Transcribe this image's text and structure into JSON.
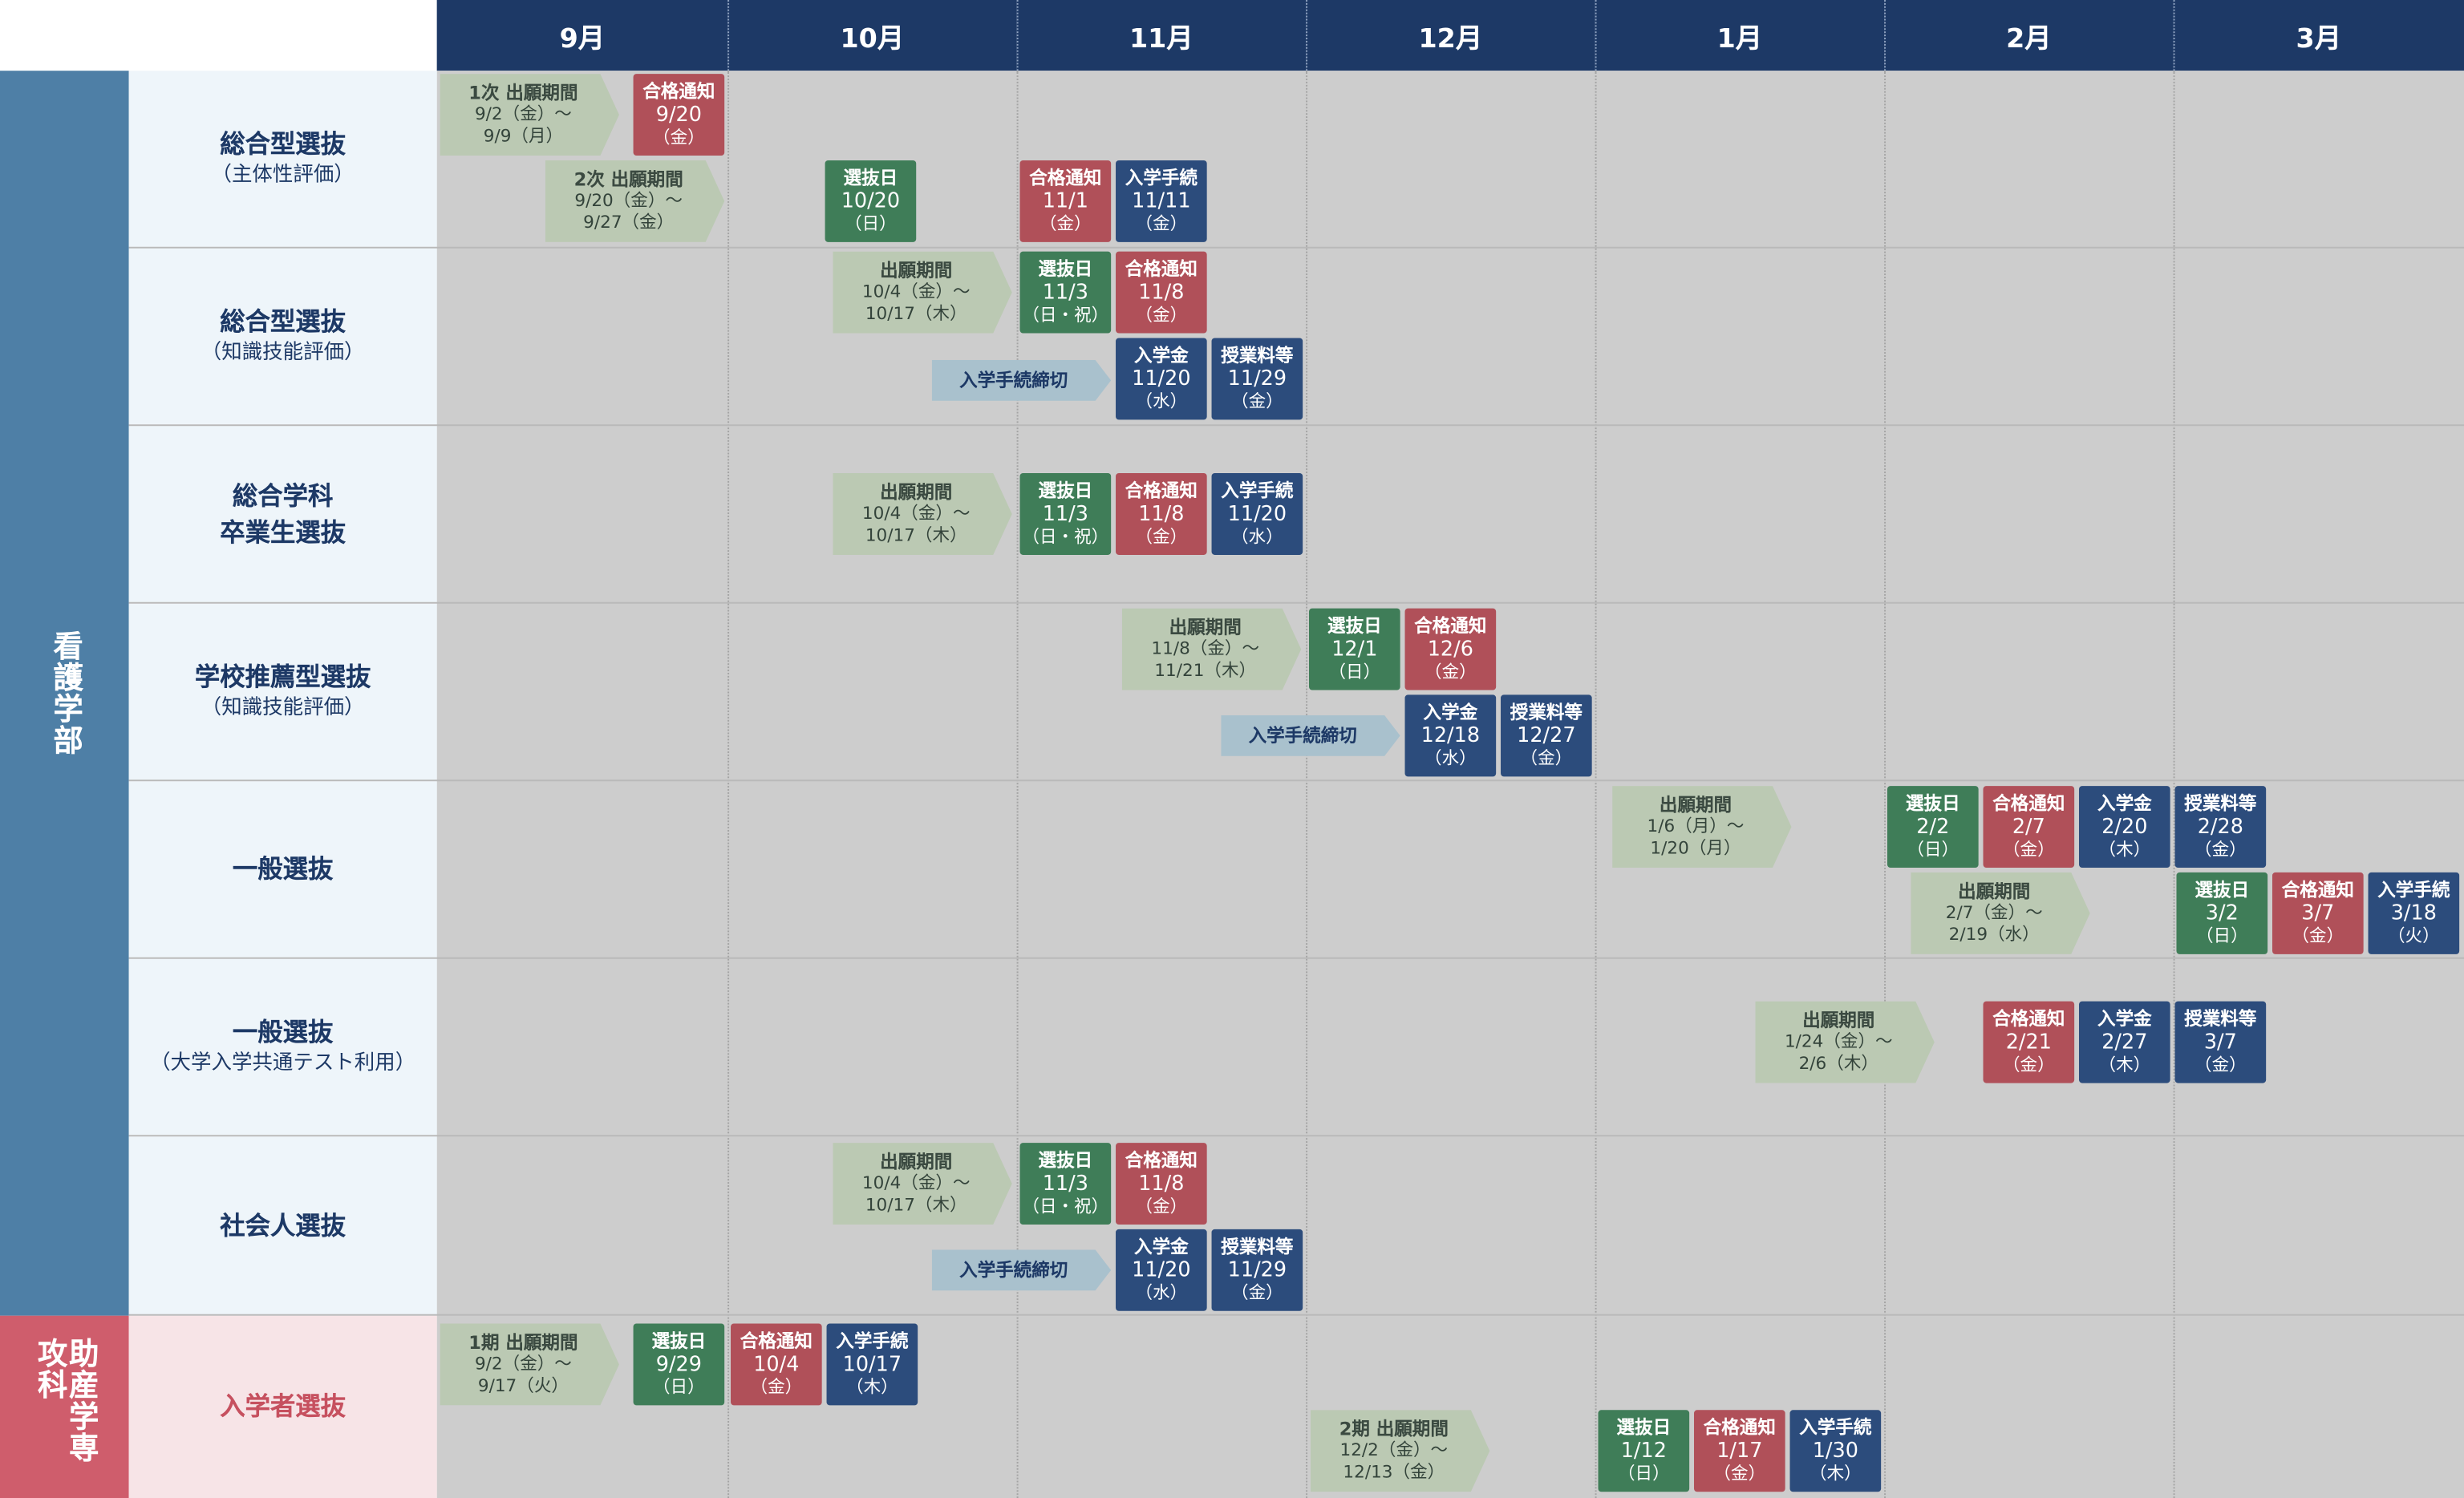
{
  "colors": {
    "header": "#1d3966",
    "nursing": "#4e7fa6",
    "midwifery": "#cf5d6c",
    "green": "#3f7d58",
    "red": "#b05059",
    "navy": "#2c4c7c",
    "arrow": "#bbc9b3",
    "deadline": "#a9c1cd"
  },
  "months": [
    "9月",
    "10月",
    "11月",
    "12月",
    "1月",
    "2月",
    "3月"
  ],
  "departments": [
    {
      "name": "看護学部"
    },
    {
      "name": "助産学専攻科"
    }
  ],
  "rows": [
    {
      "name": "総合型選抜",
      "sub": "（主体性評価）"
    },
    {
      "name": "総合型選抜",
      "sub": "（知識技能評価）"
    },
    {
      "name": "総合学科",
      "sub": "卒業生選抜"
    },
    {
      "name": "学校推薦型選抜",
      "sub": "（知識技能評価）"
    },
    {
      "name": "一般選抜",
      "sub": ""
    },
    {
      "name": "一般選抜",
      "sub": "（大学入学共通テスト利用）"
    },
    {
      "name": "社会人選抜",
      "sub": ""
    },
    {
      "name": "入学者選抜",
      "sub": ""
    }
  ],
  "arrows": [
    {
      "title": "1次 出願期間",
      "line1": "9/2（金）〜",
      "line2": "9/9（月）"
    },
    {
      "title": "2次 出願期間",
      "line1": "9/20（金）〜",
      "line2": "9/27（金）"
    },
    {
      "title": "出願期間",
      "line1": "10/4（金）〜",
      "line2": "10/17（木）"
    },
    {
      "title": "出願期間",
      "line1": "10/4（金）〜",
      "line2": "10/17（木）"
    },
    {
      "title": "出願期間",
      "line1": "11/8（金）〜",
      "line2": "11/21（木）"
    },
    {
      "title": "出願期間",
      "line1": "1/6（月）〜",
      "line2": "1/20（月）"
    },
    {
      "title": "出願期間",
      "line1": "2/7（金）〜",
      "line2": "2/19（水）"
    },
    {
      "title": "出願期間",
      "line1": "1/24（金）〜",
      "line2": "2/6（木）"
    },
    {
      "title": "出願期間",
      "line1": "10/4（金）〜",
      "line2": "10/17（木）"
    },
    {
      "title": "1期 出願期間",
      "line1": "9/2（金）〜",
      "line2": "9/17（火）"
    },
    {
      "title": "2期 出願期間",
      "line1": "12/2（金）〜",
      "line2": "12/13（金）"
    }
  ],
  "deadlines": [
    "入学手続締切",
    "入学手続締切",
    "入学手続締切"
  ],
  "cards": [
    {
      "title": "合格通知",
      "date": "9/20",
      "weekday": "（金）"
    },
    {
      "title": "選抜日",
      "date": "10/20",
      "weekday": "（日）"
    },
    {
      "title": "合格通知",
      "date": "11/1",
      "weekday": "（金）"
    },
    {
      "title": "入学手続",
      "date": "11/11",
      "weekday": "（金）"
    },
    {
      "title": "選抜日",
      "date": "11/3",
      "weekday": "（日・祝）"
    },
    {
      "title": "合格通知",
      "date": "11/8",
      "weekday": "（金）"
    },
    {
      "title": "入学金",
      "date": "11/20",
      "weekday": "（水）"
    },
    {
      "title": "授業料等",
      "date": "11/29",
      "weekday": "（金）"
    },
    {
      "title": "選抜日",
      "date": "11/3",
      "weekday": "（日・祝）"
    },
    {
      "title": "合格通知",
      "date": "11/8",
      "weekday": "（金）"
    },
    {
      "title": "入学手続",
      "date": "11/20",
      "weekday": "（水）"
    },
    {
      "title": "選抜日",
      "date": "12/1",
      "weekday": "（日）"
    },
    {
      "title": "合格通知",
      "date": "12/6",
      "weekday": "（金）"
    },
    {
      "title": "入学金",
      "date": "12/18",
      "weekday": "（水）"
    },
    {
      "title": "授業料等",
      "date": "12/27",
      "weekday": "（金）"
    },
    {
      "title": "選抜日",
      "date": "2/2",
      "weekday": "（日）"
    },
    {
      "title": "合格通知",
      "date": "2/7",
      "weekday": "（金）"
    },
    {
      "title": "入学金",
      "date": "2/20",
      "weekday": "（木）"
    },
    {
      "title": "授業料等",
      "date": "2/28",
      "weekday": "（金）"
    },
    {
      "title": "選抜日",
      "date": "3/2",
      "weekday": "（日）"
    },
    {
      "title": "合格通知",
      "date": "3/7",
      "weekday": "（金）"
    },
    {
      "title": "入学手続",
      "date": "3/18",
      "weekday": "（火）"
    },
    {
      "title": "合格通知",
      "date": "2/21",
      "weekday": "（金）"
    },
    {
      "title": "入学金",
      "date": "2/27",
      "weekday": "（木）"
    },
    {
      "title": "授業料等",
      "date": "3/7",
      "weekday": "（金）"
    },
    {
      "title": "選抜日",
      "date": "11/3",
      "weekday": "（日・祝）"
    },
    {
      "title": "合格通知",
      "date": "11/8",
      "weekday": "（金）"
    },
    {
      "title": "入学金",
      "date": "11/20",
      "weekday": "（水）"
    },
    {
      "title": "授業料等",
      "date": "11/29",
      "weekday": "（金）"
    },
    {
      "title": "選抜日",
      "date": "9/29",
      "weekday": "（日）"
    },
    {
      "title": "合格通知",
      "date": "10/4",
      "weekday": "（金）"
    },
    {
      "title": "入学手続",
      "date": "10/17",
      "weekday": "（木）"
    },
    {
      "title": "選抜日",
      "date": "1/12",
      "weekday": "（日）"
    },
    {
      "title": "合格通知",
      "date": "1/17",
      "weekday": "（金）"
    },
    {
      "title": "入学手続",
      "date": "1/30",
      "weekday": "（木）"
    }
  ]
}
